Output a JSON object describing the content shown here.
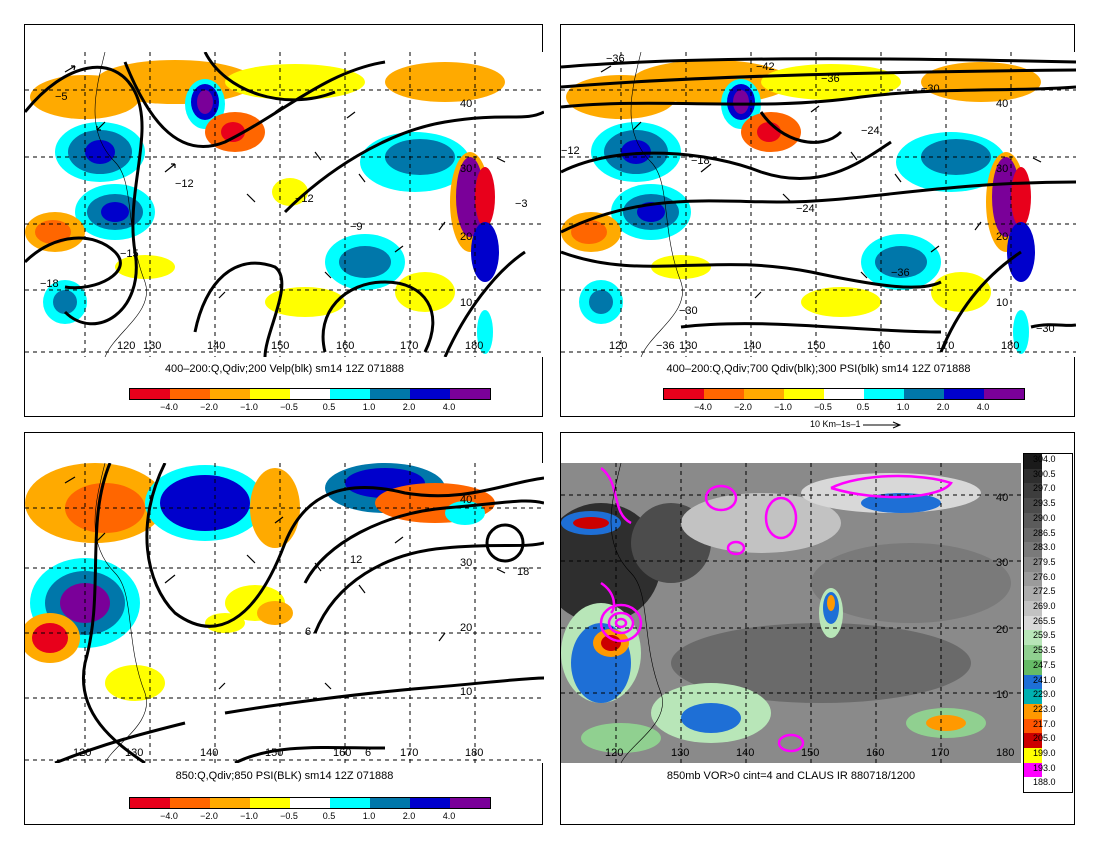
{
  "panels": [
    {
      "caption": "400–200:Q,Qdiv;200 Velp(blk) sm14 12Z 071888",
      "lon_labels": [
        "120",
        "130",
        "140",
        "150",
        "160",
        "170",
        "180"
      ],
      "lat_labels": [
        "40",
        "30",
        "20",
        "10"
      ],
      "contour_labels": [
        "−5",
        "−12",
        "−12",
        "−15",
        "−18",
        "−9",
        "−3"
      ]
    },
    {
      "caption": "400–200:Q,Qdiv;700 Qdiv(blk);300 PSI(blk) sm14 12Z 071888",
      "lon_labels": [
        "120",
        "130",
        "140",
        "150",
        "160",
        "170",
        "180"
      ],
      "lat_labels": [
        "40",
        "30",
        "20",
        "10"
      ],
      "contour_labels": [
        "−36",
        "−42",
        "−36",
        "−30",
        "−24",
        "−18",
        "−12",
        "−24",
        "−36",
        "−30",
        "−30",
        "−36"
      ],
      "vector_ref": "10 Km–1s–1"
    },
    {
      "caption": "850:Q,Qdiv;850 PSI(BLK) sm14 12Z 071888",
      "lon_labels": [
        "120",
        "130",
        "140",
        "150",
        "160",
        "170",
        "180"
      ],
      "lat_labels": [
        "40",
        "30",
        "20",
        "10"
      ],
      "contour_labels": [
        "12",
        "18",
        "6",
        "6"
      ]
    },
    {
      "caption": "850mb VOR>0 cint=4 and CLAUS IR 880718/1200",
      "lon_labels": [
        "120",
        "130",
        "140",
        "150",
        "160",
        "170",
        "180"
      ],
      "lat_labels": [
        "40",
        "30",
        "20",
        "10"
      ]
    }
  ],
  "colorbar": {
    "labels": [
      "−4.0",
      "−2.0",
      "−1.0",
      "−0.5",
      "0.5",
      "1.0",
      "2.0",
      "4.0"
    ],
    "colors": [
      "#e8001b",
      "#ff6600",
      "#ffaa00",
      "#ffff00",
      "#ffffff",
      "#00ffff",
      "#0077aa",
      "#0000cc",
      "#7a0099"
    ]
  },
  "ir_scale": {
    "labels": [
      "304.0",
      "300.5",
      "297.0",
      "293.5",
      "290.0",
      "286.5",
      "283.0",
      "279.5",
      "276.0",
      "272.5",
      "269.0",
      "265.5",
      "259.5",
      "253.5",
      "247.5",
      "241.0",
      "229.0",
      "223.0",
      "217.0",
      "205.0",
      "199.0",
      "193.0",
      "188.0"
    ],
    "colors": [
      "#1a1a1a",
      "#2e2e2e",
      "#3d3d3d",
      "#4c4c4c",
      "#5b5b5b",
      "#6a6a6a",
      "#7a7a7a",
      "#8a8a8a",
      "#9b9b9b",
      "#adadad",
      "#c2c2c2",
      "#d8d8d8",
      "#b8e6b8",
      "#90d090",
      "#66bb66",
      "#1e6fd6",
      "#00b0b0",
      "#ff9900",
      "#ff5500",
      "#cc0000",
      "#ffff00",
      "#ff00ff",
      "#ffffff"
    ]
  },
  "colors": {
    "contour": "#000000",
    "vorticity": "#ff00ff"
  }
}
